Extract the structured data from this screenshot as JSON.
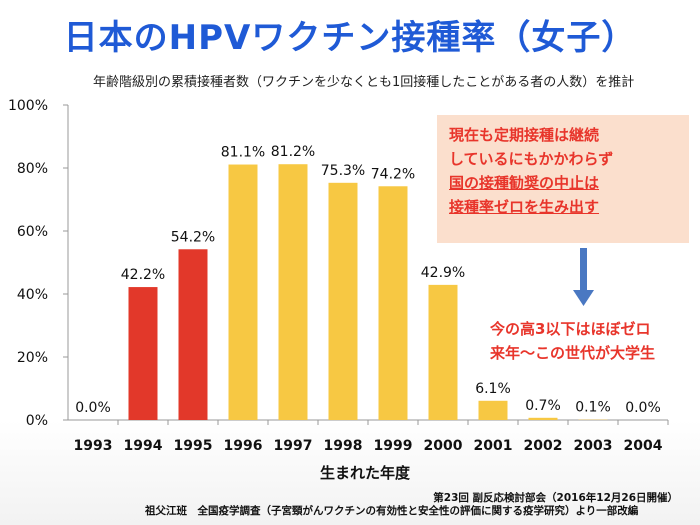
{
  "title": "日本のHPVワクチン接種率（女子）",
  "subtitle": "年齢階級別の累積接種者数（ワクチンを少なくとも1回接種したことがある者の人数）を推計",
  "callout": {
    "line1": "現在も定期接種は継続",
    "line2": "しているにもかかわらず",
    "line3": "国の接種勧奨の中止は",
    "line4": "接種率ゼロを生み出す"
  },
  "note": {
    "line1": "今の高3以下はほぼゼロ",
    "line2": "来年～この世代が大学生"
  },
  "source": {
    "line1": "第23回 副反応検討部会（2016年12月26日開催）",
    "line2": "祖父江班　全国疫学調査（子宮頸がんワクチンの有効性と安全性の評価に関する疫学研究）より一部改編"
  },
  "colors": {
    "red": "#e2382a",
    "yellow": "#f7c843",
    "arrow": "#4a78c2",
    "axis": "#999999"
  },
  "chart_data": {
    "type": "bar",
    "title": "日本のHPVワクチン接種率（女子）",
    "xlabel": "生まれた年度",
    "ylabel": "",
    "ylim": [
      0,
      100
    ],
    "yticks": [
      "0%",
      "20%",
      "40%",
      "60%",
      "80%",
      "100%"
    ],
    "categories": [
      "1993",
      "1994",
      "1995",
      "1996",
      "1997",
      "1998",
      "1999",
      "2000",
      "2001",
      "2002",
      "2003",
      "2004"
    ],
    "values": [
      0.0,
      42.2,
      54.2,
      81.1,
      81.2,
      75.3,
      74.2,
      42.9,
      6.1,
      0.7,
      0.1,
      0.0
    ],
    "data_labels": [
      "0.0%",
      "42.2%",
      "54.2%",
      "81.1%",
      "81.2%",
      "75.3%",
      "74.2%",
      "42.9%",
      "6.1%",
      "0.7%",
      "0.1%",
      "0.0%"
    ],
    "bar_colors": [
      "red",
      "red",
      "red",
      "yellow",
      "yellow",
      "yellow",
      "yellow",
      "yellow",
      "yellow",
      "yellow",
      "yellow",
      "yellow"
    ],
    "grid": false,
    "legend": "none"
  }
}
